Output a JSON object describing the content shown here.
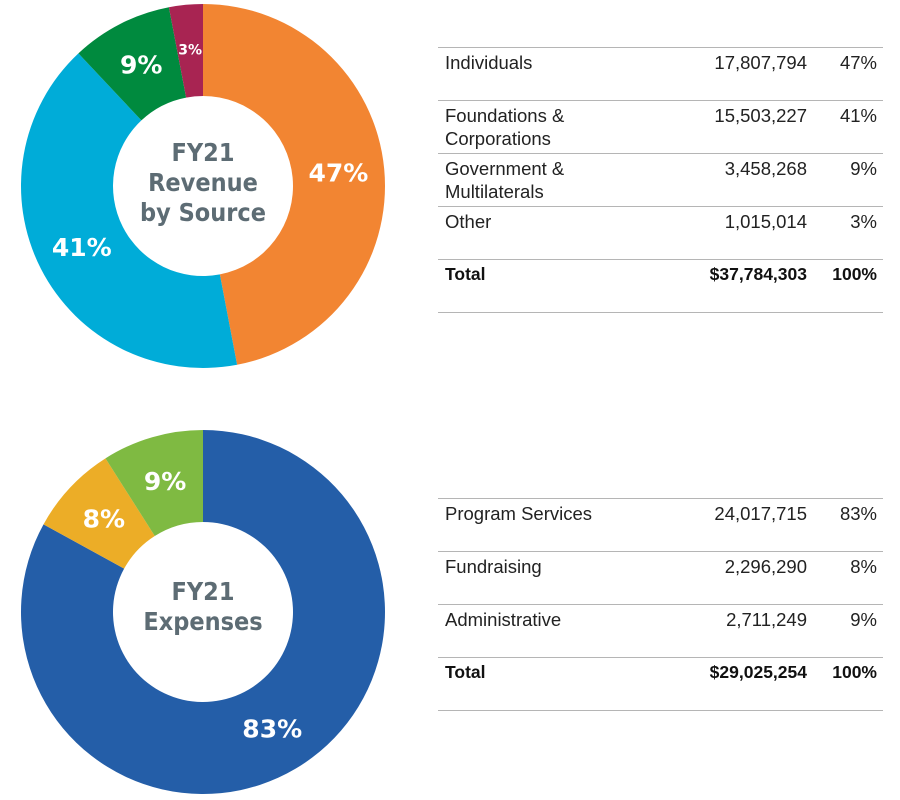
{
  "chart_data": [
    {
      "type": "pie",
      "variant": "donut",
      "title_lines": [
        "FY21",
        "Revenue",
        "by Source"
      ],
      "slices": [
        {
          "name": "Individuals",
          "value": 47,
          "label": "47%",
          "color": "#f28532"
        },
        {
          "name": "Foundations & Corporations",
          "value": 41,
          "label": "41%",
          "color": "#00acd8"
        },
        {
          "name": "Government & Multilaterals",
          "value": 9,
          "label": "9%",
          "color": "#008a3e"
        },
        {
          "name": "Other",
          "value": 3,
          "label": "3%",
          "color": "#a82452"
        }
      ]
    },
    {
      "type": "pie",
      "variant": "donut",
      "title_lines": [
        "FY21",
        "Expenses"
      ],
      "slices": [
        {
          "name": "Program Services",
          "value": 83,
          "label": "83%",
          "color": "#245ea8"
        },
        {
          "name": "Fundraising",
          "value": 8,
          "label": "8%",
          "color": "#ecad27"
        },
        {
          "name": "Administrative",
          "value": 9,
          "label": "9%",
          "color": "#7fba42"
        }
      ]
    }
  ],
  "revenue_table": {
    "rows": [
      {
        "label": "Individuals",
        "amount": "17,807,794",
        "pct": "47%"
      },
      {
        "label": "Foundations & Corporations",
        "amount": "15,503,227",
        "pct": "41%"
      },
      {
        "label": "Government & Multilaterals",
        "amount": "3,458,268",
        "pct": "9%"
      },
      {
        "label": "Other",
        "amount": "1,015,014",
        "pct": "3%"
      }
    ],
    "total": {
      "label": "Total",
      "amount": "$37,784,303",
      "pct": "100%"
    }
  },
  "expenses_table": {
    "rows": [
      {
        "label": "Program Services",
        "amount": "24,017,715",
        "pct": "83%"
      },
      {
        "label": "Fundraising",
        "amount": "2,296,290",
        "pct": "8%"
      },
      {
        "label": "Administrative",
        "amount": "2,711,249",
        "pct": "9%"
      }
    ],
    "total": {
      "label": "Total",
      "amount": "$29,025,254",
      "pct": "100%"
    }
  }
}
